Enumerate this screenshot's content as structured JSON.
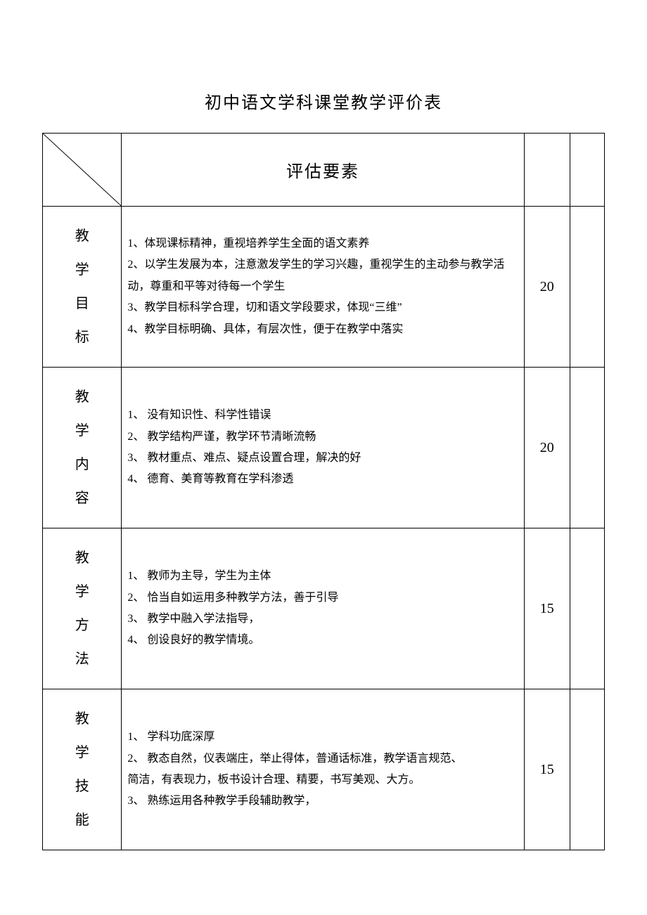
{
  "title": "初中语文学科课堂教学评价表",
  "header": {
    "criteria_label": "评估要素"
  },
  "rows": [
    {
      "category": "教学目标",
      "criteria": "1、体现课标精神，重视培养学生全面的语文素养\n2、以学生发展为本，注意激发学生的学习兴趣，重视学生的主动参与教学活动，尊重和平等对待每一个学生\n3、教学目标科学合理，切和语文学段要求，体现“三维”\n4、教学目标明确、具体，有层次性，便于在教学中落实",
      "score": "20"
    },
    {
      "category": "教学内容",
      "criteria": "1、 没有知识性、科学性错误\n2、 教学结构严谨，教学环节清晰流畅\n3、 教材重点、难点、疑点设置合理，解决的好\n4、 德育、美育等教育在学科渗透",
      "score": "20"
    },
    {
      "category": "教学方法",
      "criteria": "1、 教师为主导，学生为主体\n2、 恰当自如运用多种教学方法，善于引导\n3、 教学中融入学法指导，\n4、 创设良好的教学情境。",
      "score": "15"
    },
    {
      "category": "教学技能",
      "criteria": "1、 学科功底深厚\n2、 教态自然，仪表端庄，举止得体，普通话标准，教学语言规范、\n      简洁，有表现力，板书设计合理、精要，书写美观、大方。\n3、 熟练运用各种教学手段辅助教学，",
      "score": "15"
    }
  ],
  "style": {
    "page_bg": "#ffffff",
    "text_color": "#000000",
    "border_color": "#000000",
    "title_fontsize": 24,
    "header_fontsize": 24,
    "category_fontsize": 20,
    "criteria_fontsize": 16,
    "score_fontsize": 20,
    "col_widths": {
      "category": 110,
      "criteria": 560,
      "score": 64,
      "blank": 48
    }
  }
}
